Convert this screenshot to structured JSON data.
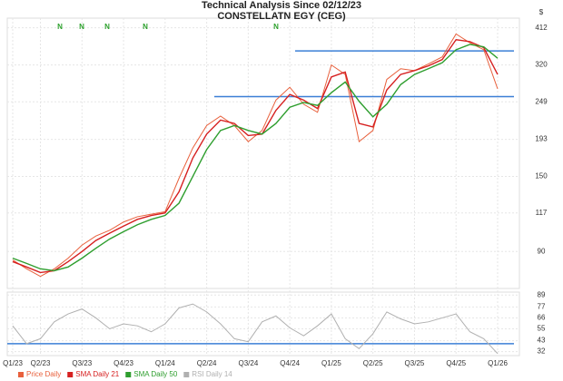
{
  "chart_data": [
    {
      "type": "line",
      "title": "Technical Analysis Since 02/12/23",
      "subtitle": "CONSTELLATN EGY (CEG)",
      "axis_unit": "$",
      "categories": [
        "Q1/23",
        null,
        "Q2/23",
        null,
        null,
        "Q3/23",
        null,
        null,
        "Q4/23",
        null,
        null,
        "Q1/24",
        null,
        null,
        "Q2/24",
        null,
        null,
        "Q3/24",
        null,
        null,
        "Q4/24",
        null,
        null,
        "Q1/25",
        null,
        null,
        "Q2/25",
        null,
        null,
        "Q3/25",
        null,
        null,
        "Q4/25",
        null,
        null,
        "Q1/26"
      ],
      "series": [
        {
          "name": "Price Daily",
          "color": "#e8603c",
          "values": [
            85,
            80,
            76,
            80,
            86,
            94,
            100,
            104,
            110,
            114,
            116,
            118,
            148,
            182,
            212,
            226,
            212,
            190,
            205,
            252,
            275,
            245,
            232,
            320,
            300,
            190,
            205,
            290,
            312,
            308,
            322,
            338,
            395,
            372,
            355,
            272
          ]
        },
        {
          "name": "SMA Daily 21",
          "color": "#d62020",
          "values": [
            84,
            81,
            78,
            79,
            84,
            90,
            97,
            102,
            107,
            112,
            115,
            117,
            135,
            170,
            200,
            220,
            215,
            198,
            200,
            235,
            262,
            252,
            238,
            295,
            305,
            215,
            210,
            270,
            300,
            308,
            318,
            332,
            380,
            375,
            360,
            300
          ]
        },
        {
          "name": "SMA Daily 50",
          "color": "#2e9e2e",
          "values": [
            86,
            83,
            80,
            79,
            81,
            86,
            92,
            98,
            103,
            108,
            112,
            115,
            125,
            150,
            180,
            205,
            212,
            205,
            200,
            215,
            240,
            248,
            243,
            265,
            285,
            250,
            225,
            245,
            280,
            300,
            312,
            325,
            355,
            368,
            362,
            335
          ]
        }
      ],
      "log_scale": true,
      "ylim": [
        70,
        440
      ],
      "yticks": [
        90,
        117,
        150,
        193,
        249,
        320,
        412
      ],
      "grid": true,
      "reference_lines": [
        {
          "value": 352,
          "color": "#3b7fd6"
        },
        {
          "value": 258,
          "color": "#3b7fd6"
        }
      ],
      "markers": [
        "N",
        "N",
        "N",
        "N",
        "N"
      ]
    },
    {
      "type": "line",
      "series": [
        {
          "name": "RSI Daily 14",
          "color": "#b0b0b0",
          "values": [
            58,
            40,
            45,
            62,
            70,
            75,
            66,
            55,
            60,
            58,
            52,
            60,
            76,
            80,
            72,
            60,
            45,
            42,
            62,
            68,
            56,
            48,
            58,
            70,
            45,
            35,
            50,
            72,
            65,
            60,
            62,
            66,
            70,
            52,
            45,
            30
          ]
        }
      ],
      "ylim": [
        28,
        92
      ],
      "yticks": [
        89,
        77,
        66,
        55,
        43,
        32
      ],
      "grid": true,
      "reference_lines": [
        {
          "value": 40,
          "color": "#3b7fd6"
        }
      ]
    }
  ]
}
